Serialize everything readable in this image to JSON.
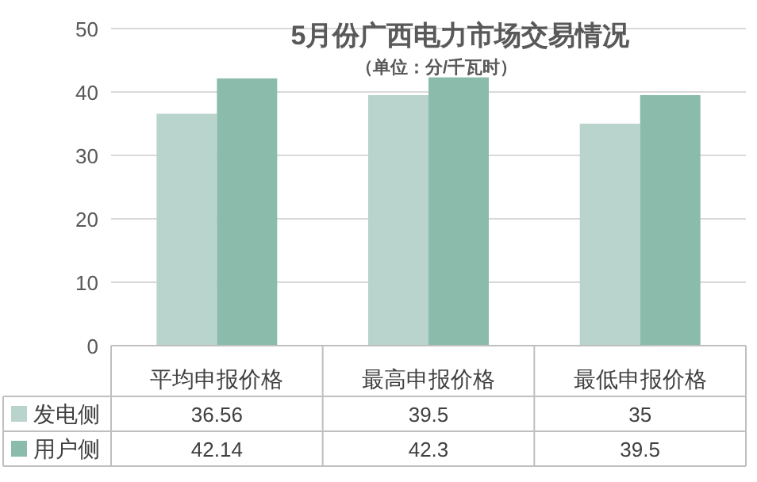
{
  "chart_data": {
    "type": "bar",
    "title": "5月份广西电力市场交易情况",
    "subtitle": "（单位：分/千瓦时）",
    "categories": [
      "平均申报价格",
      "最高申报价格",
      "最低申报价格"
    ],
    "series": [
      {
        "name": "发电侧",
        "color": "#b9d4cc",
        "values": [
          36.56,
          39.5,
          35
        ]
      },
      {
        "name": "用户侧",
        "color": "#8bbcab",
        "values": [
          42.14,
          42.3,
          39.5
        ]
      }
    ],
    "ylim": [
      0,
      50
    ],
    "yticks": [
      0,
      10,
      20,
      30,
      40,
      50
    ],
    "grid": "y",
    "legend": "bottom left",
    "data_labels": true
  }
}
